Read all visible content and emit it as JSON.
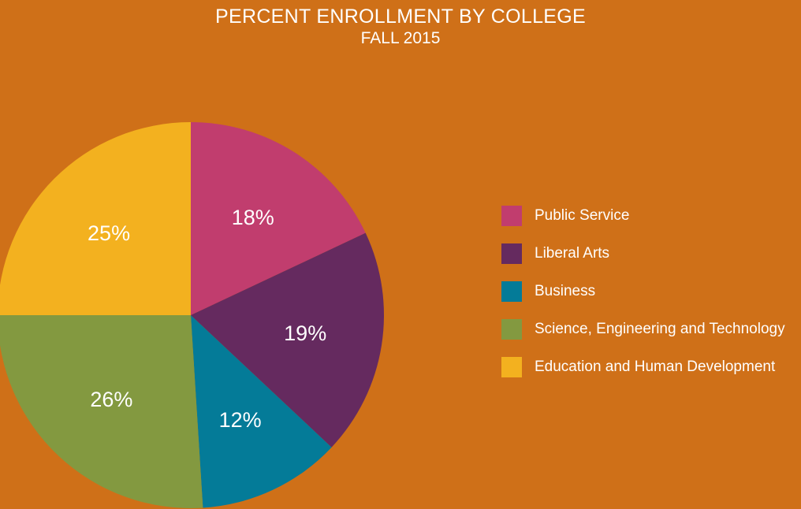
{
  "chart_data": {
    "type": "pie",
    "title": "PERCENT ENROLLMENT BY COLLEGE",
    "subtitle": "FALL 2015",
    "slices": [
      {
        "label": "Public Service",
        "value": 18,
        "value_label": "18%",
        "color": "#C13D6E"
      },
      {
        "label": "Liberal Arts",
        "value": 19,
        "value_label": "19%",
        "color": "#652A5F"
      },
      {
        "label": "Business",
        "value": 12,
        "value_label": "12%",
        "color": "#047B98"
      },
      {
        "label": "Science, Engineering and Technology",
        "value": 26,
        "value_label": "26%",
        "color": "#839940"
      },
      {
        "label": "Education and Human Development",
        "value": 25,
        "value_label": "25%",
        "color": "#F3B11F"
      }
    ],
    "legend_position": "right",
    "background_color": "#CF7018"
  }
}
